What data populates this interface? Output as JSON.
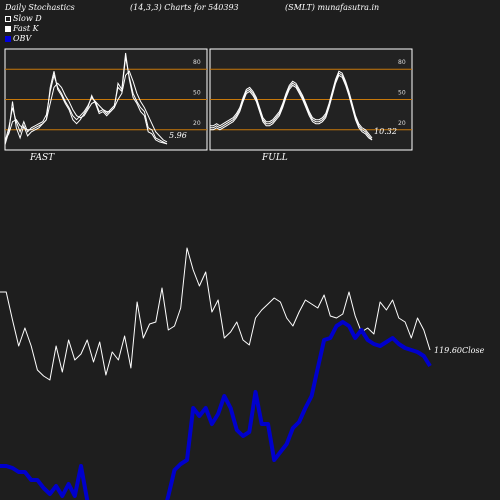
{
  "header": {
    "title": "Daily Stochastics",
    "params": "(14,3,3) Charts for 540393",
    "symbol": "(SMLT) munafasutra.in"
  },
  "legend": [
    {
      "label": "Slow  D",
      "color": "#ffffff"
    },
    {
      "label": "Fast K",
      "color": "#ffffff"
    },
    {
      "label": "OBV",
      "color": "#0000dd"
    }
  ],
  "colors": {
    "background": "#1e1e1e",
    "panel": "#222222",
    "level_line": "#c8780a",
    "price": "#ffffff",
    "obv": "#0000cc"
  },
  "chart_data": [
    {
      "type": "line",
      "title": "FAST",
      "ylim": [
        0,
        100
      ],
      "levels": [
        20,
        50,
        80
      ],
      "level_labels": [
        "20",
        "50",
        "80"
      ],
      "last_value": "5.96",
      "series": [
        {
          "values": [
            8,
            22,
            42,
            28,
            18,
            28,
            18,
            22,
            24,
            26,
            28,
            35,
            58,
            74,
            62,
            56,
            48,
            42,
            34,
            30,
            34,
            38,
            44,
            52,
            48,
            38,
            40,
            36,
            40,
            44,
            62,
            58,
            92,
            72,
            56,
            48,
            42,
            38,
            22,
            20,
            12,
            10,
            8,
            6
          ]
        },
        {
          "values": [
            5,
            18,
            48,
            22,
            12,
            24,
            14,
            18,
            20,
            22,
            26,
            30,
            62,
            78,
            60,
            54,
            46,
            40,
            30,
            26,
            30,
            36,
            42,
            54,
            46,
            36,
            38,
            34,
            38,
            42,
            66,
            60,
            96,
            70,
            52,
            46,
            38,
            34,
            18,
            16,
            10,
            8,
            7,
            6
          ]
        },
        {
          "values": [
            10,
            16,
            28,
            30,
            24,
            22,
            20,
            20,
            22,
            24,
            26,
            30,
            46,
            62,
            66,
            62,
            54,
            48,
            40,
            34,
            32,
            34,
            40,
            46,
            48,
            44,
            40,
            38,
            38,
            42,
            50,
            56,
            74,
            78,
            68,
            56,
            48,
            42,
            34,
            26,
            18,
            14,
            10,
            8
          ]
        }
      ]
    },
    {
      "type": "line",
      "title": "FULL",
      "ylim": [
        0,
        100
      ],
      "levels": [
        20,
        50,
        80
      ],
      "level_labels": [
        "20",
        "50",
        "80"
      ],
      "last_value": "10.32",
      "series": [
        {
          "values": [
            22,
            22,
            24,
            22,
            24,
            26,
            28,
            30,
            34,
            40,
            50,
            58,
            60,
            56,
            50,
            40,
            30,
            26,
            26,
            28,
            32,
            36,
            44,
            54,
            62,
            66,
            64,
            58,
            52,
            44,
            36,
            30,
            28,
            28,
            30,
            34,
            44,
            56,
            68,
            76,
            74,
            66,
            56,
            44,
            32,
            24,
            20,
            18,
            14,
            10
          ]
        },
        {
          "values": [
            20,
            20,
            22,
            20,
            22,
            24,
            26,
            28,
            32,
            38,
            48,
            56,
            58,
            54,
            48,
            38,
            28,
            24,
            24,
            26,
            30,
            34,
            42,
            52,
            60,
            64,
            62,
            56,
            50,
            42,
            34,
            28,
            26,
            26,
            28,
            32,
            42,
            54,
            66,
            74,
            72,
            64,
            54,
            42,
            30,
            22,
            18,
            16,
            12,
            10
          ]
        },
        {
          "values": [
            24,
            24,
            26,
            24,
            26,
            28,
            30,
            32,
            36,
            42,
            52,
            60,
            62,
            58,
            52,
            42,
            32,
            28,
            28,
            30,
            34,
            38,
            46,
            56,
            64,
            68,
            66,
            60,
            54,
            46,
            38,
            32,
            30,
            30,
            32,
            36,
            46,
            58,
            70,
            78,
            76,
            68,
            58,
            46,
            34,
            26,
            22,
            20,
            16,
            12
          ]
        }
      ]
    },
    {
      "type": "line",
      "title": "",
      "last_value": "119.60",
      "last_label": "Close",
      "series": [
        {
          "name": "Close",
          "values": [
            292,
            292,
            320,
            346,
            328,
            346,
            370,
            376,
            380,
            346,
            372,
            340,
            360,
            354,
            340,
            362,
            342,
            375,
            352,
            360,
            336,
            368,
            302,
            338,
            324,
            322,
            288,
            330,
            326,
            308,
            248,
            270,
            286,
            272,
            312,
            300,
            338,
            332,
            322,
            340,
            345,
            318,
            310,
            304,
            298,
            302,
            318,
            326,
            312,
            300,
            304,
            308,
            295,
            316,
            318,
            314,
            292,
            316,
            332,
            328,
            334,
            302,
            310,
            300,
            318,
            322,
            338,
            318,
            330,
            350
          ]
        },
        {
          "name": "OBV",
          "values": [
            466,
            466,
            468,
            472,
            472,
            480,
            480,
            488,
            494,
            486,
            496,
            484,
            496,
            466,
            500,
            520,
            520,
            520,
            520,
            520,
            520,
            520,
            520,
            520,
            520,
            520,
            520,
            496,
            470,
            464,
            460,
            408,
            416,
            408,
            424,
            414,
            396,
            408,
            430,
            436,
            432,
            392,
            424,
            424,
            460,
            452,
            444,
            428,
            422,
            408,
            396,
            368,
            340,
            338,
            326,
            322,
            326,
            338,
            330,
            340,
            344,
            346,
            342,
            338,
            344,
            348,
            350,
            352,
            356,
            366
          ]
        }
      ]
    }
  ]
}
